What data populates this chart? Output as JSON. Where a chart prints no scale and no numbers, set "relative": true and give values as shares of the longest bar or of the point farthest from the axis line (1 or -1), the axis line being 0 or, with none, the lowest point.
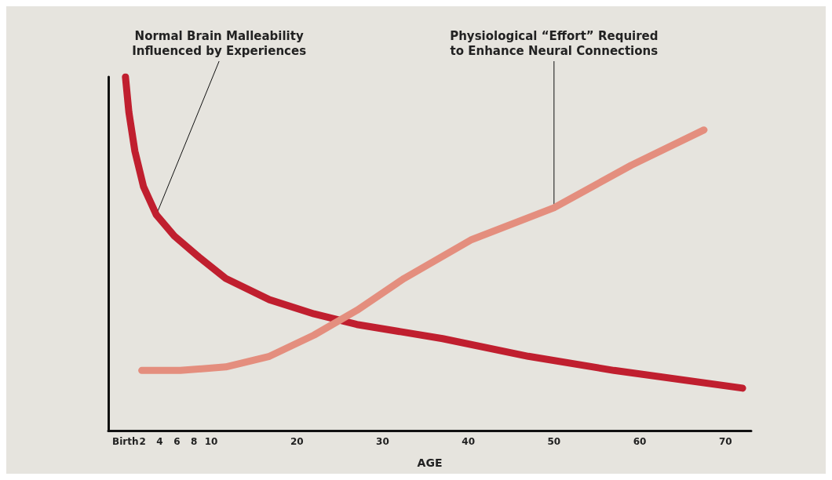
{
  "chart_data": {
    "type": "line",
    "relative": true,
    "xlabel": "AGE",
    "xlim": [
      -2,
      73
    ],
    "xticks": [
      {
        "value": 0,
        "label": "Birth"
      },
      2,
      4,
      6,
      8,
      10,
      20,
      30,
      40,
      50,
      60,
      70
    ],
    "series": [
      {
        "color": "#c01f2f",
        "x": [
          0,
          0.4,
          1.1,
          2.1,
          3.6,
          5.7,
          8.6,
          11.7,
          16.8,
          22,
          27,
          37,
          47,
          57,
          72
        ],
        "values": [
          1,
          0.9,
          0.79,
          0.69,
          0.61,
          0.55,
          0.49,
          0.43,
          0.37,
          0.33,
          0.3,
          0.26,
          0.21,
          0.17,
          0.12
        ]
      },
      {
        "color": "#e48e7e",
        "x": [
          1.9,
          6.4,
          11.7,
          16.8,
          22,
          27,
          32.5,
          40.4,
          50,
          59,
          67.5
        ],
        "values": [
          0.17,
          0.17,
          0.18,
          0.21,
          0.27,
          0.34,
          0.43,
          0.54,
          0.63,
          0.75,
          0.85
        ]
      }
    ],
    "annotations": [
      {
        "text": "Normal Brain Malleability\nInfluenced by Experiences",
        "x": 3.6,
        "y": 0.61
      },
      {
        "text": "Physiological “Effort” Required\nto Enhance Neural Connections",
        "x": 50,
        "y": 0.63
      }
    ],
    "line_style": "solid"
  }
}
